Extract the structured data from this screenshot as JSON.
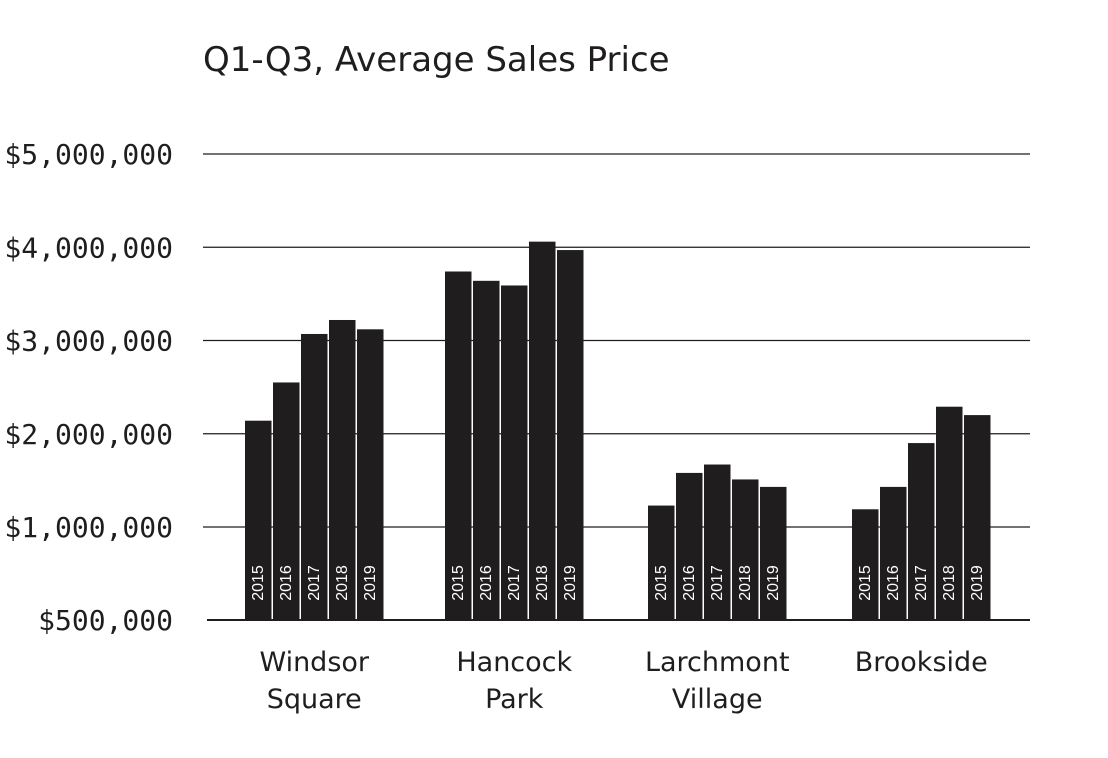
{
  "colors": {
    "bar": "#1f1d1e",
    "grid": "#1f1d1e",
    "background": "#ffffff",
    "bar_label": "#ffffff"
  },
  "chart_data": {
    "type": "bar",
    "title": "Q1-Q3, Average Sales Price",
    "categories": [
      {
        "lines": [
          "Windsor",
          "Square"
        ]
      },
      {
        "lines": [
          "Hancock",
          "Park"
        ]
      },
      {
        "lines": [
          "Larchmont",
          "Village"
        ]
      },
      {
        "lines": [
          "Brookside"
        ]
      }
    ],
    "series": [
      {
        "name": "2015",
        "values": [
          2140000,
          3740000,
          1230000,
          1190000
        ]
      },
      {
        "name": "2016",
        "values": [
          2550000,
          3640000,
          1580000,
          1430000
        ]
      },
      {
        "name": "2017",
        "values": [
          3070000,
          3590000,
          1670000,
          1900000
        ]
      },
      {
        "name": "2018",
        "values": [
          3220000,
          4060000,
          1510000,
          2290000
        ]
      },
      {
        "name": "2019",
        "values": [
          3120000,
          3970000,
          1430000,
          2200000
        ]
      }
    ],
    "ylim": [
      500000,
      5000000
    ],
    "yticks": [
      {
        "value": 500000,
        "label": "$500,000"
      },
      {
        "value": 1000000,
        "label": "$1,000,000"
      },
      {
        "value": 2000000,
        "label": "$2,000,000"
      },
      {
        "value": 3000000,
        "label": "$3,000,000"
      },
      {
        "value": 4000000,
        "label": "$4,000,000"
      },
      {
        "value": 5000000,
        "label": "$5,000,000"
      }
    ],
    "xlabel": "",
    "ylabel": "",
    "grid": true
  }
}
